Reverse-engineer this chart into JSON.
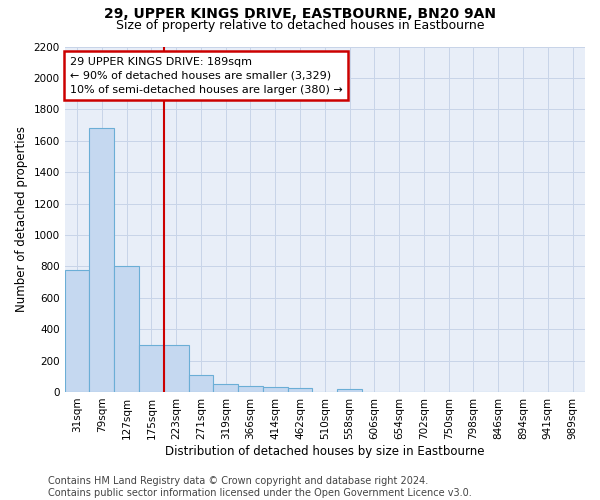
{
  "title": "29, UPPER KINGS DRIVE, EASTBOURNE, BN20 9AN",
  "subtitle": "Size of property relative to detached houses in Eastbourne",
  "xlabel": "Distribution of detached houses by size in Eastbourne",
  "ylabel": "Number of detached properties",
  "categories": [
    "31sqm",
    "79sqm",
    "127sqm",
    "175sqm",
    "223sqm",
    "271sqm",
    "319sqm",
    "366sqm",
    "414sqm",
    "462sqm",
    "510sqm",
    "558sqm",
    "606sqm",
    "654sqm",
    "702sqm",
    "750sqm",
    "798sqm",
    "846sqm",
    "894sqm",
    "941sqm",
    "989sqm"
  ],
  "values": [
    775,
    1680,
    800,
    300,
    300,
    110,
    50,
    40,
    30,
    25,
    0,
    20,
    0,
    0,
    0,
    0,
    0,
    0,
    0,
    0,
    0
  ],
  "bar_color": "#c5d8f0",
  "bar_edge_color": "#6baed6",
  "grid_color": "#c8d4e8",
  "background_color": "#e8eef8",
  "red_line_x": 3.5,
  "ylim": [
    0,
    2200
  ],
  "annotation_text": "29 UPPER KINGS DRIVE: 189sqm\n← 90% of detached houses are smaller (3,329)\n10% of semi-detached houses are larger (380) →",
  "annotation_box_color": "#ffffff",
  "annotation_box_edge_color": "#cc0000",
  "footer_text": "Contains HM Land Registry data © Crown copyright and database right 2024.\nContains public sector information licensed under the Open Government Licence v3.0.",
  "title_fontsize": 10,
  "subtitle_fontsize": 9,
  "annotation_fontsize": 8,
  "footer_fontsize": 7,
  "xlabel_fontsize": 8.5,
  "ylabel_fontsize": 8.5,
  "tick_fontsize": 7.5
}
